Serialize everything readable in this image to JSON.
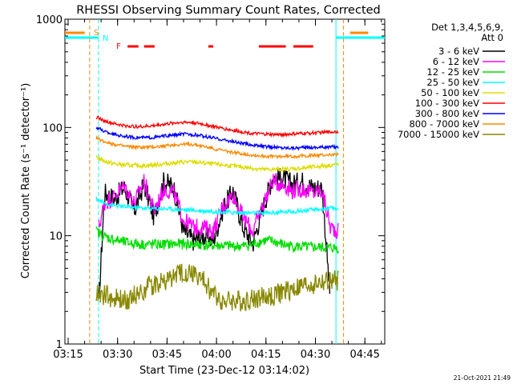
{
  "chart_data": {
    "type": "line",
    "title": "RHESSI Observing Summary Count Rates, Corrected",
    "xlabel": "Start Time (23-Dec-12 03:14:02)",
    "ylabel": "Corrected Count Rate (s⁻¹ detector⁻¹)",
    "yscale": "log",
    "ylim": [
      1,
      1000
    ],
    "xlim_minutes": [
      0,
      97
    ],
    "x_tick_labels": [
      "03:15",
      "03:30",
      "03:45",
      "04:00",
      "04:15",
      "04:30",
      "04:45"
    ],
    "x_tick_minutes": [
      0.97,
      15.97,
      30.97,
      45.97,
      60.97,
      75.97,
      90.97
    ],
    "y_tick_labels": [
      "1",
      "10",
      "100",
      "1000"
    ],
    "y_tick_values": [
      1,
      10,
      100,
      1000
    ],
    "legend": {
      "position": "top-right",
      "header_line1": "Det 1,3,4,5,6,9,",
      "header_line2": "Att 0"
    },
    "series": [
      {
        "name": "3 - 6 keV",
        "color": "#000000",
        "x": [
          10.3,
          12,
          15,
          18,
          21,
          24,
          27,
          30,
          33,
          36,
          39,
          42,
          45,
          48,
          51,
          54,
          57,
          60,
          63,
          66,
          69,
          72,
          75,
          78,
          80.5
        ],
        "y": [
          2.4,
          25,
          22,
          28,
          17,
          30,
          15,
          32,
          28,
          11,
          9,
          10,
          9,
          18,
          26,
          12,
          8.5,
          18,
          35,
          34,
          30,
          32,
          28,
          28,
          2.5
        ]
      },
      {
        "name": "6 - 12 keV",
        "color": "#ff00ff",
        "x": [
          10.3,
          12,
          15,
          18,
          21,
          24,
          27,
          30,
          33,
          36,
          39,
          42,
          45,
          48,
          51,
          54,
          57,
          60,
          63,
          66,
          69,
          72,
          75,
          78,
          80.5,
          83
        ],
        "y": [
          12,
          20,
          23,
          29,
          20,
          32,
          17,
          27,
          25,
          14,
          12,
          12,
          11,
          19,
          24,
          15,
          11,
          19,
          32,
          30,
          26,
          27,
          25,
          26,
          12,
          11
        ]
      },
      {
        "name": "12 - 25 keV",
        "color": "#00dd00",
        "x": [
          9.5,
          12,
          15,
          18,
          21,
          24,
          27,
          30,
          33,
          36,
          39,
          42,
          45,
          48,
          51,
          54,
          57,
          60,
          63,
          66,
          69,
          72,
          75,
          78,
          81,
          83
        ],
        "y": [
          11,
          9.8,
          9.2,
          8.7,
          8.5,
          8.3,
          8.3,
          8.3,
          8.4,
          8.4,
          8.3,
          8.2,
          8.1,
          8.1,
          8.0,
          8.0,
          8.3,
          9.0,
          8.9,
          8.3,
          8.0,
          7.9,
          7.8,
          7.8,
          7.7,
          7.7
        ]
      },
      {
        "name": "25 - 50 keV",
        "color": "#00ffff",
        "x": [
          9.5,
          12,
          15,
          18,
          21,
          24,
          27,
          30,
          33,
          36,
          39,
          42,
          45,
          48,
          51,
          54,
          57,
          60,
          63,
          66,
          69,
          72,
          75,
          78,
          81,
          83
        ],
        "y": [
          22,
          20,
          19,
          18.5,
          18.3,
          18.0,
          17.8,
          17.8,
          17.6,
          17.4,
          17.2,
          17.0,
          16.8,
          16.6,
          16.4,
          16.3,
          16.2,
          16.2,
          16.3,
          16.5,
          16.8,
          17.0,
          17.3,
          17.6,
          17.9,
          18.0
        ]
      },
      {
        "name": "50 - 100 keV",
        "color": "#dddd00",
        "x": [
          9.5,
          12,
          15,
          18,
          21,
          24,
          27,
          30,
          33,
          36,
          39,
          42,
          45,
          48,
          51,
          54,
          57,
          60,
          63,
          66,
          69,
          72,
          75,
          78,
          81,
          83
        ],
        "y": [
          53,
          49,
          46,
          45,
          44.5,
          44.5,
          45,
          46,
          47,
          48,
          48,
          47,
          46,
          45,
          44,
          43,
          42,
          41,
          41,
          41,
          41.5,
          42,
          43,
          44,
          45,
          46
        ]
      },
      {
        "name": "100 - 300 keV",
        "color": "#ff0000",
        "x": [
          9.5,
          12,
          15,
          18,
          21,
          24,
          27,
          30,
          33,
          36,
          39,
          42,
          45,
          48,
          51,
          54,
          57,
          60,
          63,
          66,
          69,
          72,
          75,
          78,
          81,
          83
        ],
        "y": [
          125,
          115,
          108,
          104,
          102,
          102,
          104,
          107,
          110,
          112,
          111,
          107,
          102,
          98,
          94,
          91,
          88,
          87,
          86,
          86,
          87,
          88,
          89,
          90,
          91,
          92
        ]
      },
      {
        "name": "300 - 800 keV",
        "color": "#0000ff",
        "x": [
          9.5,
          12,
          15,
          18,
          21,
          24,
          27,
          30,
          33,
          36,
          39,
          42,
          45,
          48,
          51,
          54,
          57,
          60,
          63,
          66,
          69,
          72,
          75,
          78,
          81,
          83
        ],
        "y": [
          100,
          92,
          86,
          83,
          81,
          80.5,
          81,
          83,
          85,
          87,
          86,
          83,
          80,
          77,
          74,
          71,
          69,
          67,
          66,
          65,
          65,
          65,
          65.5,
          66,
          66,
          66
        ]
      },
      {
        "name": "800 - 7000 keV",
        "color": "#ff8800",
        "x": [
          9.5,
          12,
          15,
          18,
          21,
          24,
          27,
          30,
          33,
          36,
          39,
          42,
          45,
          48,
          51,
          54,
          57,
          60,
          63,
          66,
          69,
          72,
          75,
          78,
          81,
          83
        ],
        "y": [
          80,
          74,
          70,
          67,
          66,
          65.5,
          66,
          67.5,
          69,
          70,
          69.5,
          67,
          64,
          61,
          59,
          57,
          55.5,
          54.5,
          54,
          54,
          54,
          54.5,
          55,
          55.5,
          56,
          56
        ]
      },
      {
        "name": "7000 - 15000 keV",
        "color": "#888800",
        "x": [
          9.5,
          12,
          15,
          18,
          21,
          24,
          27,
          30,
          33,
          36,
          39,
          42,
          45,
          48,
          51,
          54,
          57,
          60,
          63,
          66,
          69,
          72,
          75,
          78,
          81,
          83
        ],
        "y": [
          3.0,
          2.8,
          2.6,
          2.5,
          2.8,
          3.2,
          3.6,
          3.8,
          4.2,
          4.6,
          4.5,
          3.8,
          2.9,
          2.5,
          2.5,
          2.5,
          2.6,
          2.7,
          2.8,
          3.0,
          3.2,
          3.4,
          3.6,
          3.7,
          3.8,
          3.8
        ]
      }
    ],
    "markers": {
      "S": {
        "label": "S",
        "color": "#ff8800",
        "x_minutes": [
          7.5,
          84.5
        ]
      },
      "N": {
        "label": "N",
        "color": "#00ffff",
        "x_minutes": [
          10.2,
          82.2
        ]
      },
      "F": {
        "label": "F",
        "color": "#ff0000",
        "segments": [
          [
            19,
            22.3
          ],
          [
            24,
            27.2
          ],
          [
            43.5,
            45
          ],
          [
            58.8,
            67
          ],
          [
            69.3,
            75.3
          ]
        ]
      },
      "night_bars": {
        "color": "#00ffff",
        "segments": [
          [
            0,
            10.2
          ],
          [
            82.2,
            97
          ]
        ]
      },
      "saa_bars": {
        "color": "#ff8800",
        "segments": [
          [
            0,
            6
          ],
          [
            86.5,
            92
          ]
        ]
      }
    }
  },
  "timestamp": "21-Oct-2021 21:49"
}
